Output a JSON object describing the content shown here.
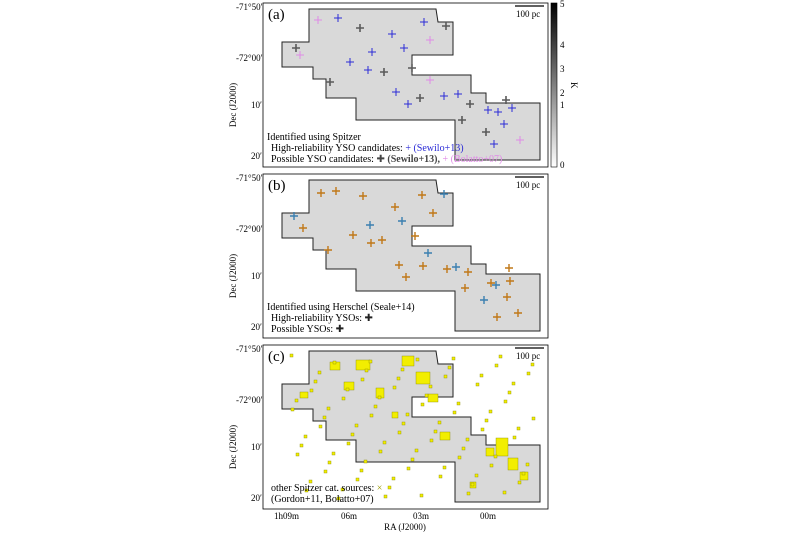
{
  "figure": {
    "x_axis_title": "RA (J2000)",
    "y_axis_title": "Dec (J2000)",
    "x_ticks": [
      "1h09m",
      "06m",
      "03m",
      "00m"
    ],
    "y_ticks": [
      "-71°50′",
      "-72°00′",
      "10′",
      "20′"
    ],
    "scale_bar_label": "100 pc",
    "colorbar": {
      "label": "K",
      "ticks": [
        "0",
        "1",
        "2",
        "3",
        "4",
        "5"
      ],
      "range": [
        0,
        5
      ]
    }
  },
  "panels": [
    {
      "label": "(a)",
      "legend": {
        "heading": "Identified using Spitzer",
        "line1_text": "High-reliability YSO candidates:",
        "line1_marker": "+",
        "line1_ref": "(Sewilo+13)",
        "line2_text": "Possible YSO candidates:",
        "line2_marker": "✚",
        "line2_ref1": "(Sewilo+13),",
        "line2_marker2": "+",
        "line2_ref2": "(Bolatto+07)"
      },
      "colors": {
        "high": "#2a2ad6",
        "possible_sewilo": "#5a5a5a",
        "possible_bolatto": "#e08ae6"
      }
    },
    {
      "label": "(b)",
      "legend": {
        "heading": "Identified using Herschel (Seale+14)",
        "line1_text": "High-reliability YSOs:",
        "line1_marker": "✚",
        "line2_text": "Possible YSOs:",
        "line2_marker": "✚"
      },
      "colors": {
        "high": "#c07818",
        "possible": "#3a7fb0"
      }
    },
    {
      "label": "(c)",
      "legend": {
        "line1_text": "other Spitzer cat. sources:",
        "line1_marker": "×",
        "line2_text": "(Gordon+11, Bolatto+07)"
      },
      "colors": {
        "sources": "#f2ee00"
      }
    }
  ]
}
